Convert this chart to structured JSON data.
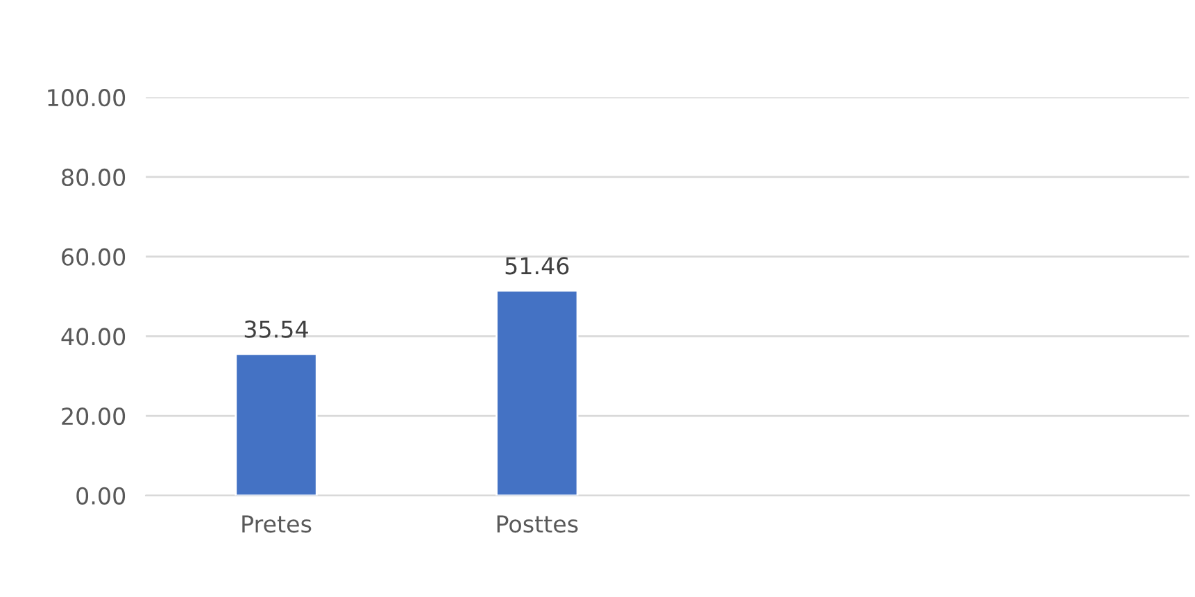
{
  "chart_data": {
    "type": "bar",
    "categories": [
      "Pretes",
      "Posttes",
      null,
      null
    ],
    "values": [
      35.54,
      51.46,
      null,
      null
    ],
    "color": "#4472c4",
    "ylim": [
      0,
      100
    ],
    "yticks": [
      {
        "value": 0,
        "label": "0.00"
      },
      {
        "value": 20,
        "label": "20.00"
      },
      {
        "value": 40,
        "label": "40.00"
      },
      {
        "value": 60,
        "label": "60.00"
      },
      {
        "value": 80,
        "label": "80.00"
      },
      {
        "value": 100,
        "label": "100.00"
      }
    ],
    "grid": "y",
    "data_labels": true
  }
}
